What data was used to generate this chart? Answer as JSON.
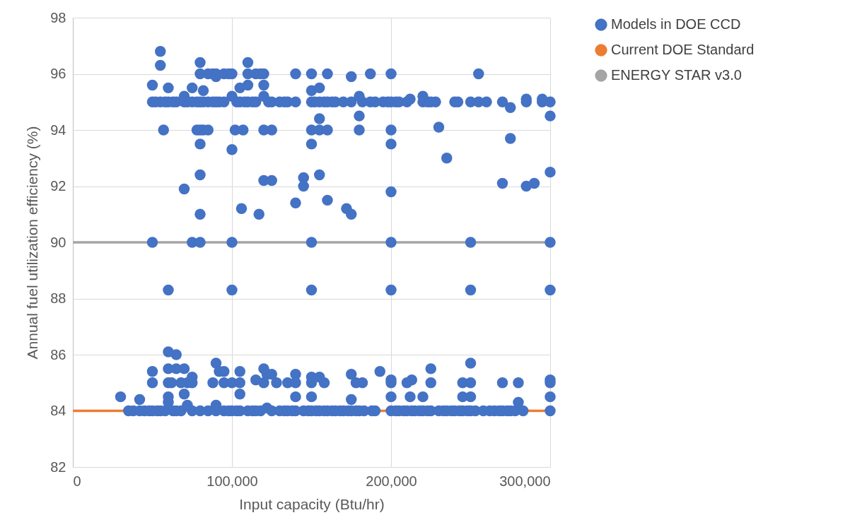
{
  "chart_data": {
    "type": "scatter",
    "xlabel": "Input capacity (Btu/hr)",
    "ylabel": "Annual fuel utilization efficiency (%)",
    "xlim": [
      0,
      300000
    ],
    "xticks": [
      0,
      {
        "value": 100000,
        "label": "100,000"
      },
      {
        "value": 200000,
        "label": "200,000"
      },
      {
        "value": 300000,
        "label": "300,000"
      }
    ],
    "ylim": [
      82,
      98
    ],
    "yticks": [
      82,
      84,
      86,
      88,
      90,
      92,
      94,
      96,
      98
    ],
    "grid": true,
    "legend": "right",
    "marker": "circle",
    "series": [
      {
        "name": "Models in DOE CCD",
        "color": "#4472c4",
        "x": [
          50000,
          52000,
          55000,
          58000,
          60000,
          63000,
          65000,
          70000,
          72000,
          75000,
          78000,
          80000,
          82000,
          85000,
          88000,
          90000,
          92000,
          95000,
          103000,
          105000,
          108000,
          110000,
          113000,
          115000,
          123000,
          125000,
          130000,
          133000,
          135000,
          140000,
          150000,
          152000,
          155000,
          158000,
          160000,
          163000,
          165000,
          170000,
          175000,
          182000,
          187000,
          190000,
          195000,
          198000,
          200000,
          203000,
          205000,
          210000,
          220000,
          223000,
          225000,
          228000,
          240000,
          242000,
          250000,
          255000,
          260000,
          270000,
          285000,
          295000,
          300000,
          80000,
          85000,
          88000,
          90000,
          95000,
          98000,
          100000,
          110000,
          115000,
          118000,
          120000,
          140000,
          150000,
          160000,
          187000,
          200000,
          255000,
          55000,
          55000,
          80000,
          110000,
          90000,
          175000,
          50000,
          60000,
          75000,
          82000,
          105000,
          110000,
          120000,
          150000,
          155000,
          180000,
          220000,
          70000,
          100000,
          120000,
          212000,
          285000,
          295000,
          275000,
          300000,
          180000,
          155000,
          57000,
          78000,
          80000,
          82000,
          85000,
          102000,
          107000,
          120000,
          125000,
          150000,
          155000,
          160000,
          180000,
          200000,
          230000,
          100000,
          80000,
          150000,
          200000,
          275000,
          235000,
          80000,
          155000,
          120000,
          125000,
          145000,
          145000,
          70000,
          270000,
          285000,
          290000,
          300000,
          200000,
          160000,
          140000,
          106000,
          117000,
          80000,
          172000,
          175000,
          50000,
          75000,
          80000,
          100000,
          150000,
          200000,
          250000,
          300000,
          60000,
          100000,
          150000,
          200000,
          250000,
          300000,
          35000,
          38000,
          42000,
          45000,
          48000,
          50000,
          53000,
          55000,
          58000,
          63000,
          65000,
          68000,
          75000,
          80000,
          85000,
          90000,
          95000,
          98000,
          100000,
          103000,
          105000,
          110000,
          113000,
          115000,
          118000,
          125000,
          130000,
          133000,
          135000,
          138000,
          140000,
          145000,
          148000,
          150000,
          153000,
          155000,
          158000,
          160000,
          163000,
          165000,
          168000,
          170000,
          173000,
          175000,
          178000,
          180000,
          183000,
          188000,
          190000,
          200000,
          203000,
          205000,
          208000,
          210000,
          213000,
          215000,
          218000,
          220000,
          223000,
          225000,
          230000,
          233000,
          235000,
          238000,
          240000,
          243000,
          245000,
          248000,
          250000,
          253000,
          258000,
          262000,
          265000,
          268000,
          270000,
          273000,
          275000,
          278000,
          283000,
          300000,
          30000,
          42000,
          50000,
          50000,
          60000,
          65000,
          60000,
          65000,
          70000,
          75000,
          60000,
          62000,
          68000,
          72000,
          75000,
          60000,
          60000,
          70000,
          72000,
          88000,
          90000,
          92000,
          95000,
          95000,
          100000,
          105000,
          105000,
          115000,
          120000,
          122000,
          125000,
          120000,
          128000,
          135000,
          140000,
          140000,
          150000,
          150000,
          155000,
          158000,
          175000,
          178000,
          182000,
          193000,
          200000,
          200000,
          210000,
          213000,
          225000,
          225000,
          245000,
          250000,
          250000,
          270000,
          280000,
          300000,
          300000,
          90000,
          105000,
          140000,
          150000,
          175000,
          200000,
          212000,
          220000,
          245000,
          250000,
          280000,
          300000,
          122000
        ],
        "values": [
          95,
          95,
          95,
          95,
          95,
          95,
          95,
          95,
          95,
          95,
          95,
          95,
          95,
          95,
          95,
          95,
          95,
          95,
          95,
          95,
          95,
          95,
          95,
          95,
          95,
          95,
          95,
          95,
          95,
          95,
          95,
          95,
          95,
          95,
          95,
          95,
          95,
          95,
          95,
          95,
          95,
          95,
          95,
          95,
          95,
          95,
          95,
          95,
          95,
          95,
          95,
          95,
          95,
          95,
          95,
          95,
          95,
          95,
          95,
          95,
          95,
          96,
          96,
          96,
          96,
          96,
          96,
          96,
          96,
          96,
          96,
          96,
          96,
          96,
          96,
          96,
          96,
          96,
          96.8,
          96.3,
          96.4,
          96.4,
          95.9,
          95.9,
          95.6,
          95.5,
          95.5,
          95.4,
          95.5,
          95.6,
          95.6,
          95.4,
          95.5,
          95.2,
          95.2,
          95.2,
          95.2,
          95.2,
          95.1,
          95.1,
          95.1,
          94.8,
          94.5,
          94.5,
          94.4,
          94,
          94,
          94,
          94,
          94,
          94,
          94,
          94,
          94,
          94,
          94,
          94,
          94,
          94,
          94.1,
          93.3,
          93.5,
          93.5,
          93.5,
          93.7,
          93,
          92.4,
          92.4,
          92.2,
          92.2,
          92.3,
          92,
          91.9,
          92.1,
          92,
          92.1,
          92.5,
          91.8,
          91.5,
          91.4,
          91.2,
          91,
          91,
          91.2,
          91,
          90,
          90,
          90,
          90,
          90,
          90,
          90,
          90,
          88.3,
          88.3,
          88.3,
          88.3,
          88.3,
          88.3,
          84,
          84,
          84,
          84,
          84,
          84,
          84,
          84,
          84,
          84,
          84,
          84,
          84,
          84,
          84,
          84,
          84,
          84,
          84,
          84,
          84,
          84,
          84,
          84,
          84,
          84,
          84,
          84,
          84,
          84,
          84,
          84,
          84,
          84,
          84,
          84,
          84,
          84,
          84,
          84,
          84,
          84,
          84,
          84,
          84,
          84,
          84,
          84,
          84,
          84,
          84,
          84,
          84,
          84,
          84,
          84,
          84,
          84,
          84,
          84,
          84,
          84,
          84,
          84,
          84,
          84,
          84,
          84,
          84,
          84,
          84,
          84,
          84,
          84,
          84,
          84,
          84,
          84,
          84,
          84,
          84.5,
          84.4,
          85.4,
          85,
          86.1,
          86,
          85.5,
          85.5,
          85.5,
          85.2,
          85,
          85,
          85,
          85,
          85,
          84.5,
          84.3,
          84.6,
          84.2,
          85,
          85.7,
          85.4,
          85.4,
          85,
          85,
          85.4,
          85,
          85.1,
          85.5,
          85.3,
          85.3,
          85,
          85,
          85,
          85.3,
          85,
          85.2,
          85,
          85.2,
          85,
          85.3,
          85,
          85,
          85.4,
          85.1,
          85,
          85,
          85.1,
          85.5,
          85,
          85,
          85.7,
          85,
          85,
          85,
          85.1,
          85,
          84.2,
          84.6,
          84.5,
          84.5,
          84.4,
          84.5,
          84.5,
          84.5,
          84.5,
          84.5,
          84.3,
          84.5,
          84.1
        ]
      },
      {
        "name": "Current DOE Standard",
        "color": "#ed7d31",
        "type": "line",
        "marker": "none",
        "x": [
          0,
          300000
        ],
        "values": [
          84,
          84
        ]
      },
      {
        "name": "ENERGY STAR v3.0",
        "color": "#a5a5a5",
        "type": "line",
        "marker": "none",
        "x": [
          0,
          300000
        ],
        "values": [
          90,
          90
        ]
      }
    ]
  }
}
